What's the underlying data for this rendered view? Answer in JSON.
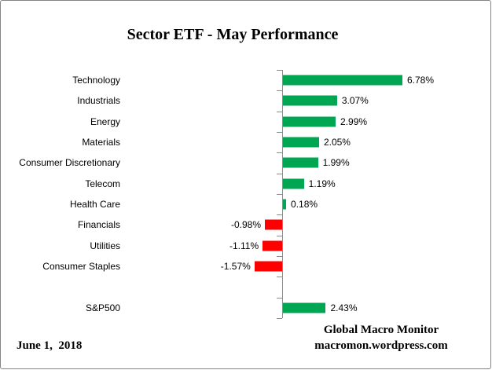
{
  "chart": {
    "title": "Sector ETF - May Performance",
    "footer_left": "June 1,  2018",
    "footer_right_line1": "Global Macro Monitor",
    "footer_right_line2": "macromon.wordpress.com",
    "positive_color": "#00A651",
    "negative_color": "#FF0000",
    "axis_color": "#8C8C8C"
  },
  "chart_data": {
    "type": "bar",
    "orientation": "horizontal",
    "title": "Sector ETF - May Performance",
    "unit": "%",
    "xlim": [
      -2,
      8
    ],
    "grid": false,
    "legend": false,
    "categories": [
      "Technology",
      "Industrials",
      "Energy",
      "Materials",
      "Consumer Discretionary",
      "Telecom",
      "Health Care",
      "Financials",
      "Utilities",
      "Consumer Staples",
      "",
      "S&P500"
    ],
    "rows": [
      {
        "label": "Technology",
        "value": 6.78,
        "display": "6.78%"
      },
      {
        "label": "Industrials",
        "value": 3.07,
        "display": "3.07%"
      },
      {
        "label": "Energy",
        "value": 2.99,
        "display": "2.99%"
      },
      {
        "label": "Materials",
        "value": 2.05,
        "display": "2.05%"
      },
      {
        "label": "Consumer Discretionary",
        "value": 1.99,
        "display": "1.99%"
      },
      {
        "label": "Telecom",
        "value": 1.19,
        "display": "1.19%"
      },
      {
        "label": "Health Care",
        "value": 0.18,
        "display": "0.18%"
      },
      {
        "label": "Financials",
        "value": -0.98,
        "display": "-0.98%"
      },
      {
        "label": "Utilities",
        "value": -1.11,
        "display": "-1.11%"
      },
      {
        "label": "Consumer Staples",
        "value": -1.57,
        "display": "-1.57%"
      },
      {
        "label": "",
        "value": null,
        "display": ""
      },
      {
        "label": "S&P500",
        "value": 2.43,
        "display": "2.43%"
      }
    ],
    "annotations": [
      "June 1,  2018",
      "Global Macro Monitor",
      "macromon.wordpress.com"
    ]
  }
}
